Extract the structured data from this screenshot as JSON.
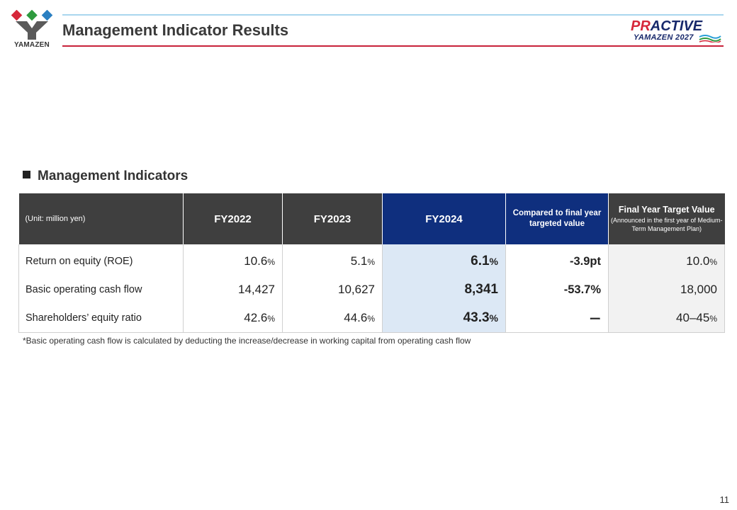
{
  "header": {
    "logo_text": "YAMAZEN",
    "title": "Management Indicator Results",
    "brand_part1": "PR",
    "brand_part2": "ACTIVE",
    "brand_sub": "YAMAZEN 2027"
  },
  "colors": {
    "accent_red": "#c8223a",
    "header_dark": "#3f3f3f",
    "header_navy": "#0f2f7e",
    "fy2024_fill": "#dce8f5",
    "target_fill": "#f2f2f2"
  },
  "section": {
    "heading": "Management Indicators"
  },
  "table": {
    "unit_label": "(Unit: million yen)",
    "columns": {
      "fy2022": "FY2022",
      "fy2023": "FY2023",
      "fy2024": "FY2024",
      "compared": "Compared to final year targeted value",
      "final_title": "Final Year Target Value",
      "final_note": "(Announced in the first year of Medium-Term Management Plan)"
    },
    "rows": [
      {
        "label": "Return on equity (ROE)",
        "fy2022": "10.6",
        "fy2022_unit": "%",
        "fy2023": "5.1",
        "fy2023_unit": "%",
        "fy2024": "6.1",
        "fy2024_unit": "%",
        "compared": "-3.9pt",
        "final": "10.0",
        "final_unit": "%"
      },
      {
        "label": "Basic operating cash flow",
        "fy2022": "14,427",
        "fy2022_unit": "",
        "fy2023": "10,627",
        "fy2023_unit": "",
        "fy2024": "8,341",
        "fy2024_unit": "",
        "compared": "-53.7%",
        "final": "18,000",
        "final_unit": ""
      },
      {
        "label": "Shareholders’ equity ratio",
        "fy2022": "42.6",
        "fy2022_unit": "%",
        "fy2023": "44.6",
        "fy2023_unit": "%",
        "fy2024": "43.3",
        "fy2024_unit": "%",
        "compared": "ー",
        "final": "40–45",
        "final_unit": "%"
      }
    ]
  },
  "footnote": "*Basic operating cash flow is calculated by deducting the increase/decrease in working capital from operating cash flow",
  "page_number": "11"
}
